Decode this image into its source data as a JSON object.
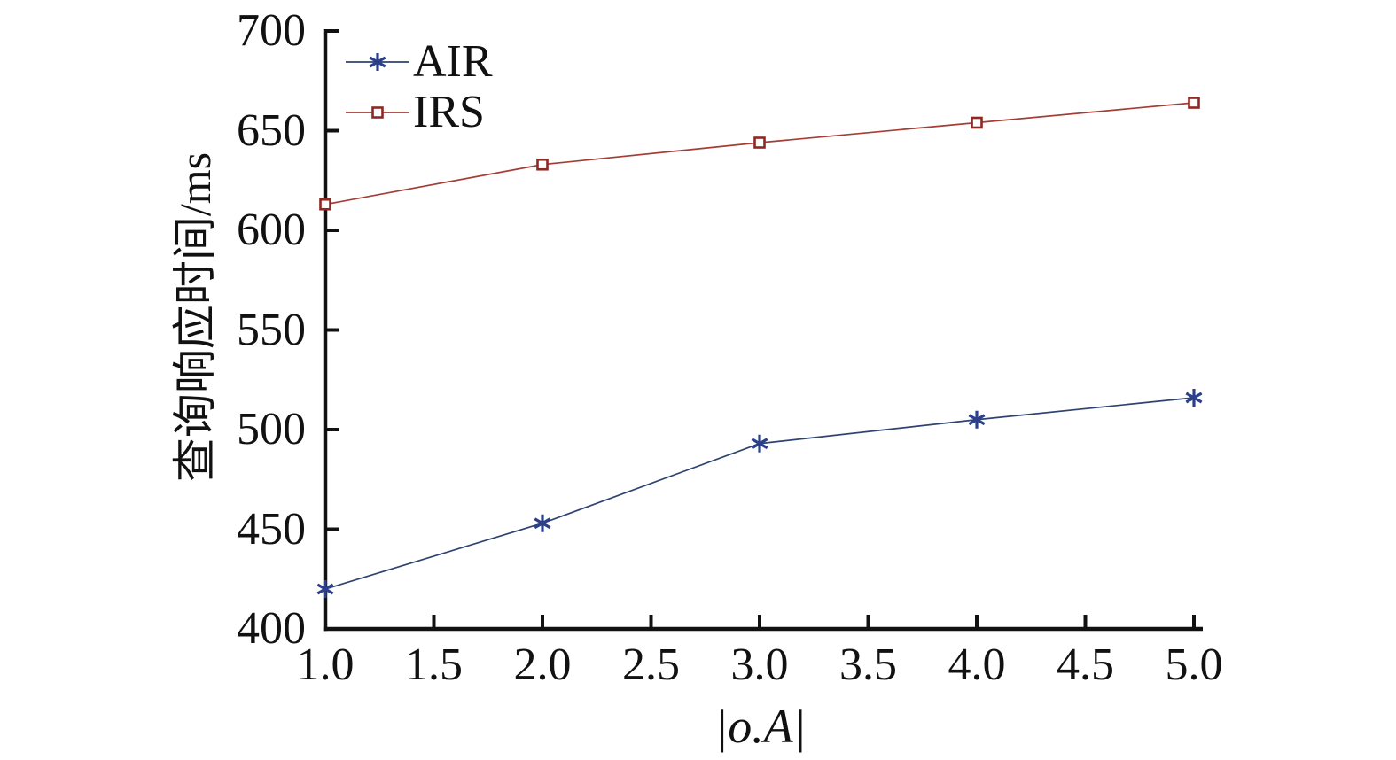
{
  "chart_data": {
    "type": "line",
    "title": "",
    "xlabel": "|o.A|",
    "ylabel": "查询响应时间/ms",
    "x": [
      1.0,
      2.0,
      3.0,
      4.0,
      5.0
    ],
    "series": [
      {
        "name": "AIR",
        "values": [
          420,
          453,
          493,
          505,
          516
        ],
        "line_color": "#2f4370",
        "marker_color": "#2b3f8a",
        "marker": "asterisk"
      },
      {
        "name": "IRS",
        "values": [
          613,
          633,
          644,
          654,
          664
        ],
        "line_color": "#a33d36",
        "marker_color": "#8e2823",
        "marker": "open-square"
      }
    ],
    "xlim": [
      1.0,
      5.0
    ],
    "ylim": [
      400,
      700
    ],
    "x_ticks": [
      "1.0",
      "1.5",
      "2.0",
      "2.5",
      "3.0",
      "3.5",
      "4.0",
      "4.5",
      "5.0"
    ],
    "y_ticks": [
      "400",
      "450",
      "500",
      "550",
      "600",
      "650",
      "700"
    ],
    "grid": false,
    "legend_position": "top-left",
    "axis_color": "#111111",
    "background_color": "#ffffff"
  }
}
